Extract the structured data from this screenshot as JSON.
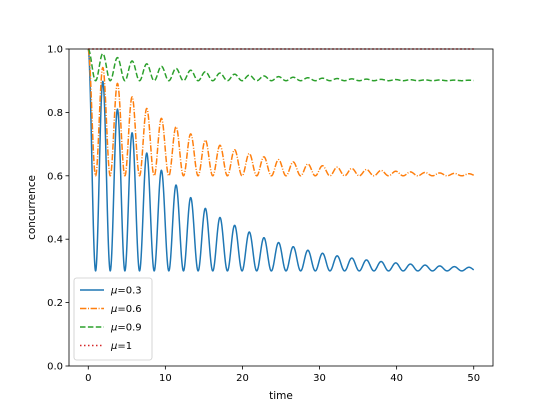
{
  "chart_data": {
    "type": "line",
    "title": "",
    "xlabel": "time",
    "ylabel": "concurrence",
    "xlim": [
      -2.5,
      52.5
    ],
    "ylim": [
      0.0,
      1.0
    ],
    "xticks": [
      0,
      10,
      20,
      30,
      40,
      50
    ],
    "yticks": [
      0.0,
      0.2,
      0.4,
      0.6,
      0.8,
      1.0
    ],
    "xtick_labels": [
      "0",
      "10",
      "20",
      "30",
      "40",
      "50"
    ],
    "ytick_labels": [
      "0.0",
      "0.2",
      "0.4",
      "0.6",
      "0.8",
      "1.0"
    ],
    "grid": false,
    "legend": {
      "position": "lower-left"
    },
    "model": "damped oscillation starting at 1.0 and decaying toward mu",
    "x_range": [
      0,
      50
    ],
    "oscillation_period": 1.9,
    "series": [
      {
        "name": "μ=0.3",
        "legend_label": "=0.3",
        "mu": 0.3,
        "color": "#1f77b4",
        "style": "solid",
        "decay_time": 12,
        "start": 1.0
      },
      {
        "name": "μ=0.6",
        "legend_label": "=0.6",
        "mu": 0.6,
        "color": "#ff7f0e",
        "style": "dashdot",
        "decay_time": 12,
        "start": 1.0
      },
      {
        "name": "μ=0.9",
        "legend_label": "=0.9",
        "mu": 0.9,
        "color": "#2ca02c",
        "style": "dashed",
        "decay_time": 12,
        "start": 1.0
      },
      {
        "name": "μ=1",
        "legend_label": "=1",
        "mu": 1.0,
        "color": "#d62728",
        "style": "dotted",
        "decay_time": 12,
        "start": 1.0
      }
    ],
    "legend_symbol": "μ"
  }
}
